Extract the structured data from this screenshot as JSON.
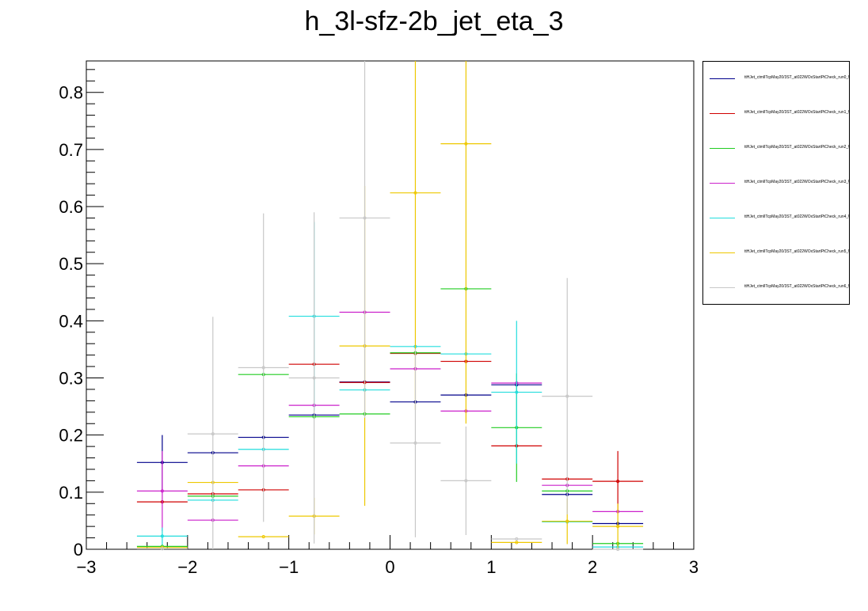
{
  "chart_data": {
    "type": "scatter",
    "title": "h_3l-sfz-2b_jet_eta_3",
    "xlabel": "",
    "ylabel": "",
    "xlim": [
      -3,
      3
    ],
    "ylim": [
      0,
      0.855
    ],
    "bin_edges": [
      -2.5,
      -2,
      -1.5,
      -1,
      -0.5,
      0,
      0.5,
      1,
      1.5,
      2,
      2.5
    ],
    "x_ticks": [
      -3,
      -2,
      -1,
      0,
      1,
      2,
      3
    ],
    "x_tick_labels": [
      "−3",
      "−2",
      "−1",
      "0",
      "1",
      "2",
      "3"
    ],
    "y_ticks": [
      0,
      0.1,
      0.2,
      0.3,
      0.4,
      0.5,
      0.6,
      0.7,
      0.8
    ],
    "y_tick_labels": [
      "0",
      "0.1",
      "0.2",
      "0.3",
      "0.4",
      "0.5",
      "0.6",
      "0.7",
      "0.8"
    ],
    "grid": false,
    "legend_position": "right",
    "series": [
      {
        "name": "ttHJet_ctmlITcpMay20/3ST_at022WOxStartPtCheck_run0_UL17",
        "color": "#00008b",
        "values": [
          0.152,
          0.169,
          0.196,
          0.235,
          0.293,
          0.258,
          0.27,
          0.288,
          0.096,
          0.045
        ],
        "errors": [
          0.048,
          0.0,
          0.0,
          0.0,
          0.0,
          0.0,
          0.0,
          0.0,
          0.0,
          0.0
        ]
      },
      {
        "name": "ttHJet_ctmlITcpMay20/3ST_at022WOxStartPtCheck_run1_UL17",
        "color": "#d00000",
        "values": [
          0.083,
          0.097,
          0.104,
          0.324,
          0.292,
          0.343,
          0.329,
          0.181,
          0.123,
          0.119
        ],
        "errors": [
          0.0,
          0.0,
          0.0,
          0.0,
          0.0,
          0.0,
          0.0,
          0.0,
          0.0,
          0.053
        ]
      },
      {
        "name": "ttHJet_ctmlITcpMay20/3ST_at022WOxStartPtCheck_run2_UL17",
        "color": "#22cc22",
        "values": [
          0.005,
          0.093,
          0.306,
          0.232,
          0.237,
          0.344,
          0.456,
          0.213,
          0.102,
          0.01
        ],
        "errors": [
          0.0,
          0.0,
          0.0,
          0.0,
          0.0,
          0.0,
          0.0,
          0.095,
          0.0,
          0.0
        ]
      },
      {
        "name": "ttHJet_ctmlITcpMay20/3ST_at022WOxStartPtCheck_run3_UL17",
        "color": "#cc22cc",
        "values": [
          0.102,
          0.051,
          0.146,
          0.252,
          0.415,
          0.316,
          0.242,
          0.291,
          0.112,
          0.066
        ],
        "errors": [
          0.07,
          0.0,
          0.0,
          0.0,
          0.0,
          0.0,
          0.0,
          0.0,
          0.0,
          0.0
        ]
      },
      {
        "name": "ttHJet_ctmlITcpMay20/3ST_at022WOxStartPtCheck_run4_UL17",
        "color": "#22dddd",
        "values": [
          0.023,
          0.086,
          0.175,
          0.408,
          0.279,
          0.355,
          0.342,
          0.275,
          0.048,
          0.004
        ],
        "errors": [
          0.015,
          0.0,
          0.0,
          0.165,
          0.0,
          0.0,
          0.0,
          0.125,
          0.0,
          0.0
        ]
      },
      {
        "name": "ttHJet_ctmlITcpMay20/3ST_at022WOxStartPtCheck_run5_UL17",
        "color": "#eec800",
        "values": [
          0.003,
          0.117,
          0.022,
          0.058,
          0.356,
          0.624,
          0.71,
          0.012,
          0.049,
          0.04
        ],
        "errors": [
          0.0,
          0.0,
          0.0,
          0.032,
          0.28,
          0.38,
          0.49,
          0.0,
          0.04,
          0.04
        ]
      },
      {
        "name": "ttHJet_ctmlITcpMay20/3ST_at022WOxStartPtCheck_run6_UL17",
        "color": "#c8c8c8",
        "values": [
          0.001,
          0.202,
          0.318,
          0.3,
          0.58,
          0.186,
          0.12,
          0.018,
          0.268,
          0.0
        ],
        "errors": [
          0.0,
          0.205,
          0.27,
          0.29,
          0.35,
          0.165,
          0.095,
          0.0,
          0.207,
          0.0
        ]
      }
    ]
  }
}
